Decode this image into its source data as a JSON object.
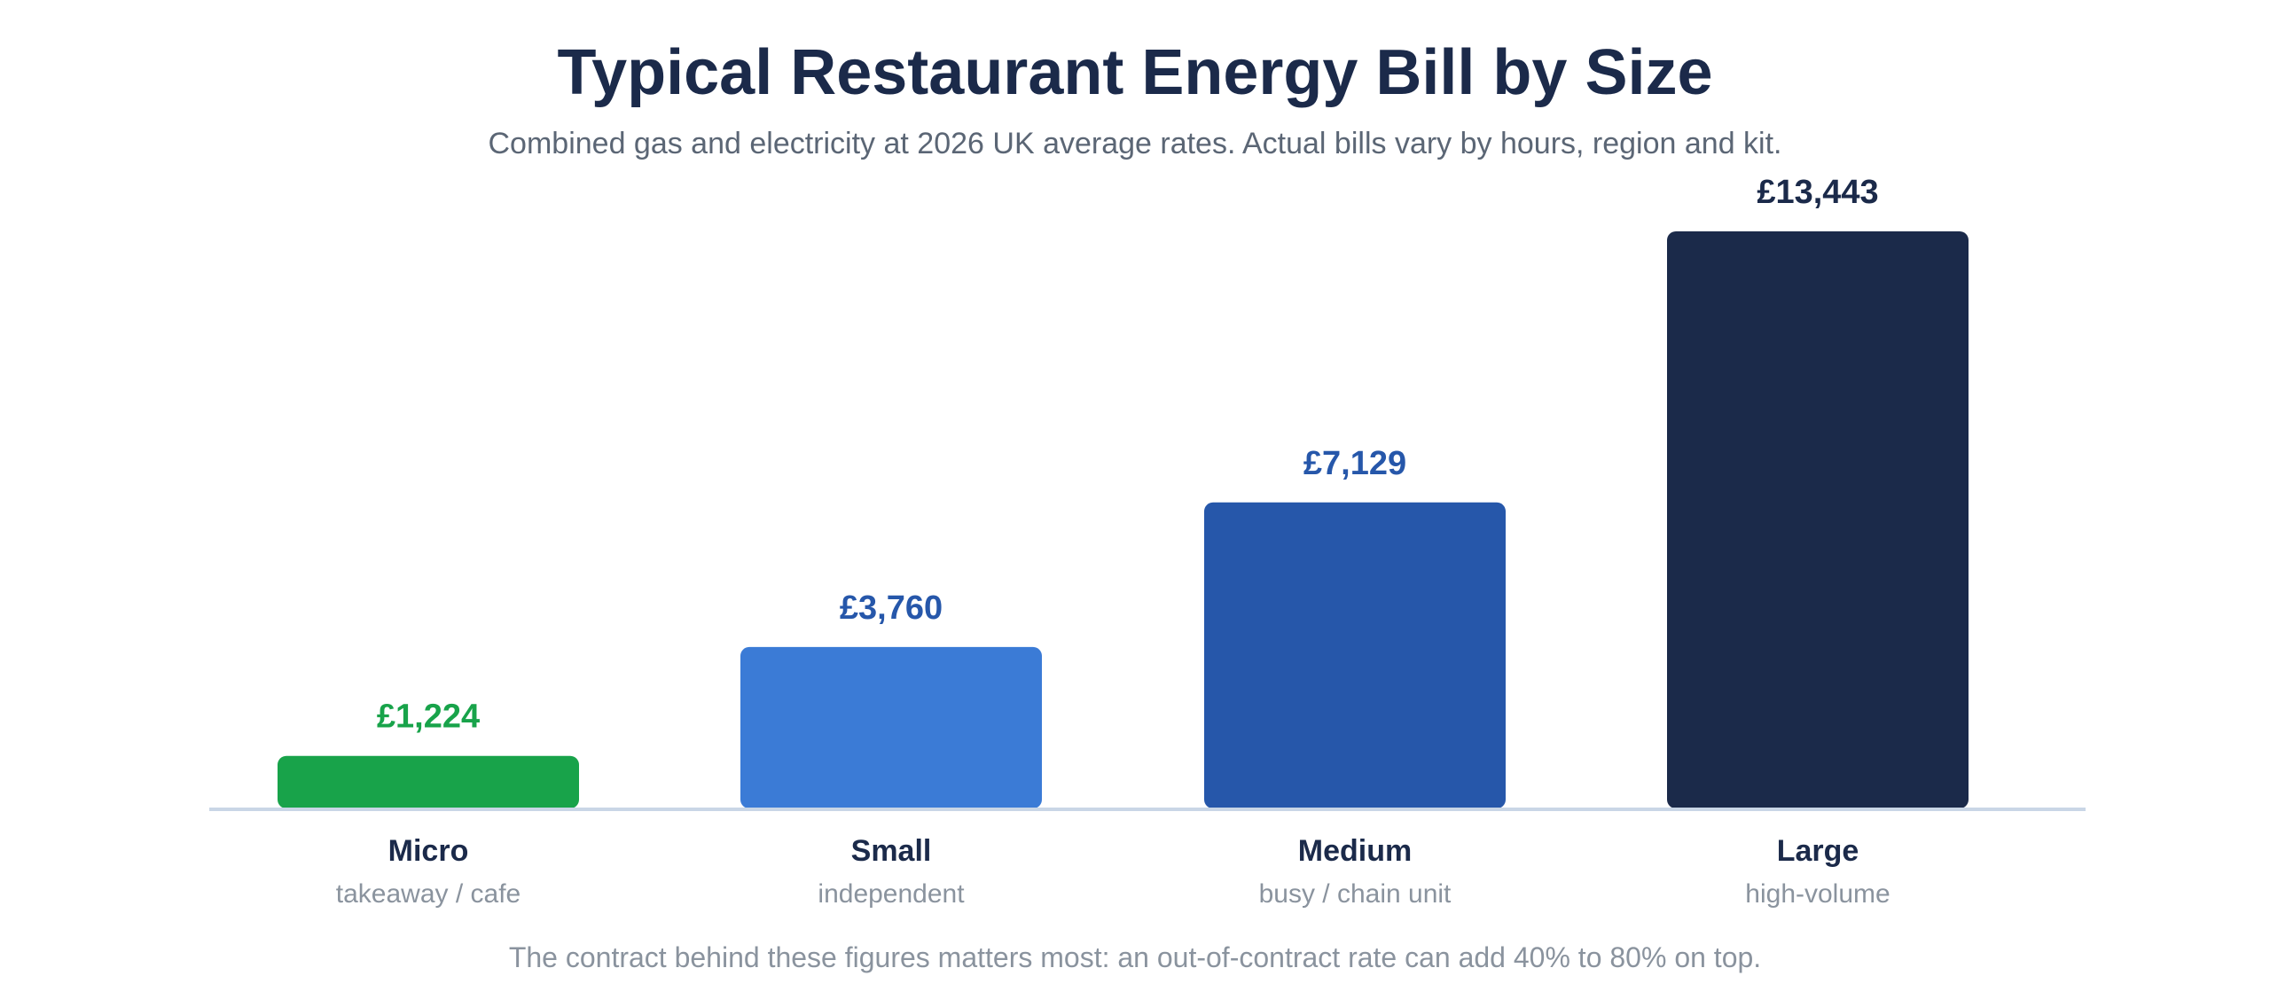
{
  "chart_data": {
    "type": "bar",
    "title": "Typical Restaurant Energy Bill by Size",
    "subtitle": "Combined gas and electricity at 2026 UK average rates. Actual bills vary by hours, region and kit.",
    "footnote": "The contract behind these figures matters most: an out-of-contract rate can add 40% to 80% on top.",
    "categories": [
      "Micro",
      "Small",
      "Medium",
      "Large"
    ],
    "subcategories": [
      "takeaway / cafe",
      "independent",
      "busy / chain unit",
      "high-volume"
    ],
    "values": [
      1224,
      3760,
      7129,
      13443
    ],
    "value_labels": [
      "£1,224",
      "£3,760",
      "£7,129",
      "£13,443"
    ],
    "bar_colors": [
      "#18a34a",
      "#3b7bd6",
      "#2657aa",
      "#1b2a4a"
    ],
    "label_colors": [
      "#18a34a",
      "#2657aa",
      "#2657aa",
      "#1b2a4a"
    ],
    "ylim": [
      0,
      13443
    ],
    "grid": false,
    "axis_color": "#c9d6e6",
    "xlabel": "",
    "ylabel": ""
  }
}
